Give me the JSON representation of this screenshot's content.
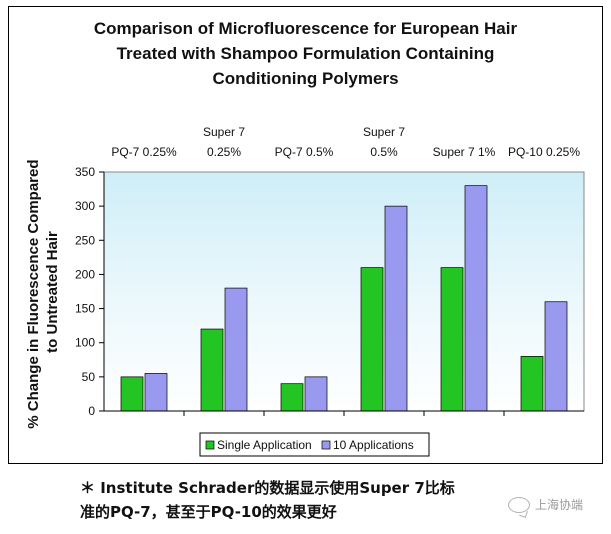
{
  "chart_data": {
    "type": "bar",
    "title": [
      "Comparison of Microfluorescence for European Hair",
      "Treated with Shampoo Formulation Containing",
      "Conditioning Polymers"
    ],
    "ylabel": [
      "% Change in Fluorescence Compared",
      "to Untreated Hair"
    ],
    "categories": [
      [
        "PQ-7 0.25%"
      ],
      [
        "Super 7",
        "0.25%"
      ],
      [
        "PQ-7 0.5%"
      ],
      [
        "Super 7",
        "0.5%"
      ],
      [
        "Super 7 1%"
      ],
      [
        "PQ-10 0.25%"
      ]
    ],
    "yticks": [
      0,
      50,
      100,
      150,
      200,
      250,
      300,
      350
    ],
    "ylim": [
      0,
      350
    ],
    "grid": false,
    "legend_position": "bottom",
    "series": [
      {
        "name": "Single Application",
        "color": "#22c522",
        "values": [
          50,
          120,
          40,
          210,
          210,
          80
        ]
      },
      {
        "name": "10 Applications",
        "color": "#9999f0",
        "values": [
          55,
          180,
          50,
          300,
          330,
          160
        ]
      }
    ]
  },
  "note": {
    "line1": "＊ Institute Schrader的数据显示使用Super 7比标",
    "line2": "准的PQ-7，甚至于PQ-10的效果更好"
  },
  "watermark": {
    "text": "上海协端"
  }
}
